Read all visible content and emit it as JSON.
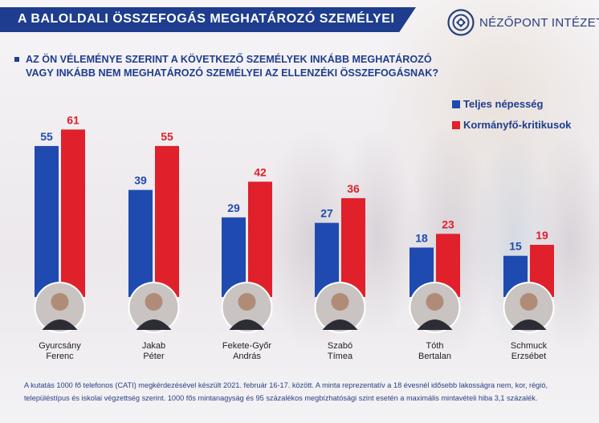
{
  "header": {
    "title": "A BALOLDALI ÖSSZEFOGÁS MEGHATÁROZÓ SZEMÉLYEI",
    "logo_text": "NÉZŐPONT INTÉZET"
  },
  "question_lines": [
    "AZ ÖN VÉLEMÉNYE SZERINT A KÖVETKEZŐ SZEMÉLYEK INKÁBB MEGHATÁROZÓ",
    "VAGY INKÁBB NEM MEGHATÁROZÓ SZEMÉLYEI AZ ELLENZÉKI ÖSSZEFOGÁSNAK?"
  ],
  "colors": {
    "blue": "#1f4bb0",
    "red": "#e0202a",
    "title_bg": "#1e3d8f"
  },
  "chart_data": {
    "type": "bar",
    "categories": [
      [
        "Gyurcsány",
        "Ferenc"
      ],
      [
        "Jakab",
        "Péter"
      ],
      [
        "Fekete-Győr",
        "András"
      ],
      [
        "Szabó",
        "Tímea"
      ],
      [
        "Tóth",
        "Bertalan"
      ],
      [
        "Schmuck",
        "Erzsébet"
      ]
    ],
    "series": [
      {
        "name": "Teljes népesség",
        "values": [
          55,
          39,
          29,
          27,
          18,
          15
        ]
      },
      {
        "name": "Kormányfő-kritikusok",
        "values": [
          61,
          55,
          42,
          36,
          23,
          19
        ]
      }
    ],
    "ylim": [
      0,
      70
    ],
    "title": "",
    "xlabel": "",
    "ylabel": ""
  },
  "footnote": "A kutatás 1000 fő telefonos (CATI) megkérdezésével készült 2021. február 16-17. között. A minta reprezentatív a 18 évesnél idősebb lakosságra nem, kor, régió, településtípus és iskolai végzettség szerint. 1000 fős mintanagyság és 95 százalékos megbízhatósági szint esetén a maximális mintavételi hiba 3,1 százalék."
}
